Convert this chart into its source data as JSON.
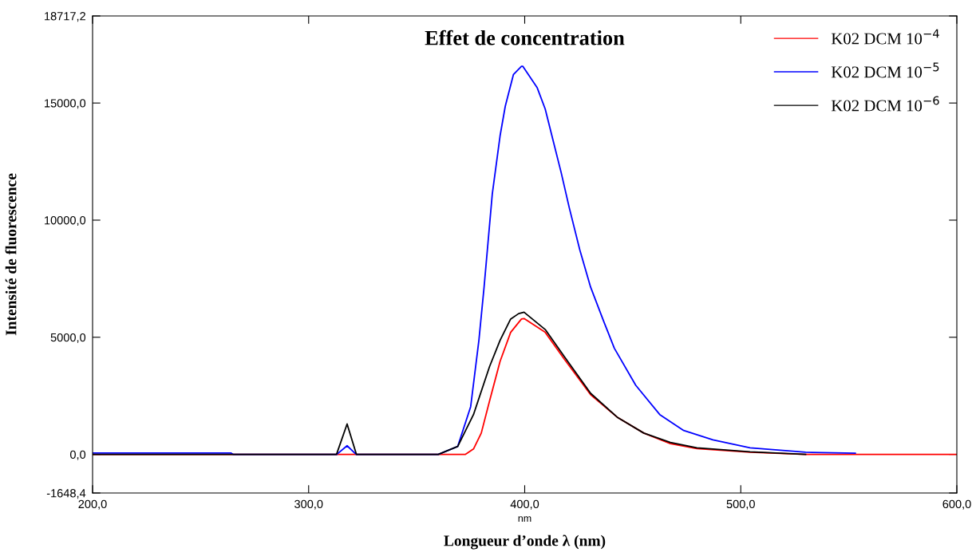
{
  "chart_data": {
    "type": "line",
    "title": "Effet de concentration",
    "xlabel": "Longueur d’onde λ (nm)",
    "ylabel": "Intensité de fluorescence",
    "annotations": [
      "nm"
    ],
    "xlim": [
      200,
      600
    ],
    "ylim": [
      -1648.4,
      18717.2
    ],
    "xticks": [
      {
        "value": 200,
        "label": "200,0"
      },
      {
        "value": 300,
        "label": "300,0"
      },
      {
        "value": 400,
        "label": "400,0"
      },
      {
        "value": 500,
        "label": "500,0"
      },
      {
        "value": 600,
        "label": "600,0"
      }
    ],
    "yticks": [
      {
        "value": -1648.4,
        "label": "-1648,4"
      },
      {
        "value": 0,
        "label": "0,0"
      },
      {
        "value": 5000,
        "label": "5000,0"
      },
      {
        "value": 10000,
        "label": "10000,0"
      },
      {
        "value": 15000,
        "label": "15000,0"
      },
      {
        "value": 18717.2,
        "label": "18717,2"
      }
    ],
    "grid": false,
    "legend": "top right",
    "marker": "none",
    "line_style": "solid",
    "series": [
      {
        "name": "K02 DCM 10$^{−4}$",
        "color": "#ff0000",
        "x": [
          200,
          310,
          372.6,
          376.3,
          379.9,
          383.7,
          388.6,
          393.5,
          398.5,
          399.7,
          409.5,
          418.2,
          430.5,
          442.8,
          455.1,
          467.4,
          479.7,
          504.3,
          530,
          600
        ],
        "values": [
          0,
          0,
          0,
          230,
          910,
          2270,
          3970,
          5210,
          5780,
          5800,
          5210,
          4080,
          2550,
          1590,
          910,
          460,
          250,
          90,
          0,
          0
        ]
      },
      {
        "name": "K02 DCM 10$^{−5}$",
        "color": "#0000ff",
        "x": [
          200,
          264,
          265,
          313,
          317.8,
          322,
          360,
          369,
          375,
          378.8,
          381.2,
          385,
          388.6,
          391,
          394.8,
          398.5,
          399.1,
          405.8,
          409.5,
          413.2,
          416.9,
          420.6,
          425.5,
          430.5,
          436.6,
          441.5,
          451.4,
          462.5,
          473.6,
          487.1,
          504.3,
          530,
          553
        ],
        "values": [
          60,
          60,
          0,
          0,
          370,
          0,
          0,
          340,
          2040,
          4870,
          7140,
          11120,
          13600,
          14860,
          16220,
          16570,
          16570,
          15650,
          14740,
          13380,
          12020,
          10540,
          8730,
          7140,
          5670,
          4530,
          2950,
          1700,
          1020,
          620,
          280,
          90,
          50
        ]
      },
      {
        "name": "K02 DCM 10$^{−6}$",
        "color": "#000000",
        "x": [
          200,
          312.9,
          317.8,
          322.1,
          360,
          369,
          376.3,
          383.7,
          388.6,
          393.5,
          397.2,
          399.7,
          409.5,
          418.2,
          430.5,
          442.8,
          455.1,
          467.4,
          479.7,
          504.3,
          530
        ],
        "values": [
          0,
          0,
          1300,
          0,
          0,
          340,
          1700,
          3740,
          4870,
          5780,
          6010,
          6070,
          5330,
          4190,
          2610,
          1590,
          910,
          510,
          280,
          110,
          0
        ]
      }
    ]
  }
}
